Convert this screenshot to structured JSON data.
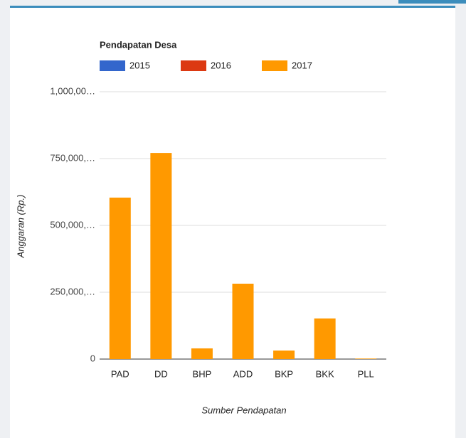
{
  "chart_data": {
    "type": "bar",
    "title": "Pendapatan Desa",
    "x_label": "Sumber Pendapatan",
    "y_label": "Anggaran (Rp.)",
    "categories": [
      "PAD",
      "DD",
      "BHP",
      "ADD",
      "BKP",
      "BKK",
      "PLL"
    ],
    "series": [
      {
        "name": "2015",
        "color": "#3366cc",
        "values": [
          null,
          null,
          null,
          null,
          null,
          null,
          null
        ]
      },
      {
        "name": "2016",
        "color": "#dc3912",
        "values": [
          null,
          null,
          null,
          null,
          null,
          null,
          null
        ]
      },
      {
        "name": "2017",
        "color": "#ff9900",
        "values": [
          604000000,
          771000000,
          40000000,
          282000000,
          32000000,
          152000000,
          2000000
        ]
      }
    ],
    "ylim": [
      0,
      1000000000
    ],
    "yticks": [
      0,
      {
        "value": 250000000,
        "label": "250,000,…"
      },
      {
        "value": 500000000,
        "label": "500,000,…"
      },
      {
        "value": 750000000,
        "label": "750,000,…"
      },
      {
        "value": 1000000000,
        "label": "1,000,00…"
      }
    ],
    "grid": true,
    "legend": "top"
  }
}
